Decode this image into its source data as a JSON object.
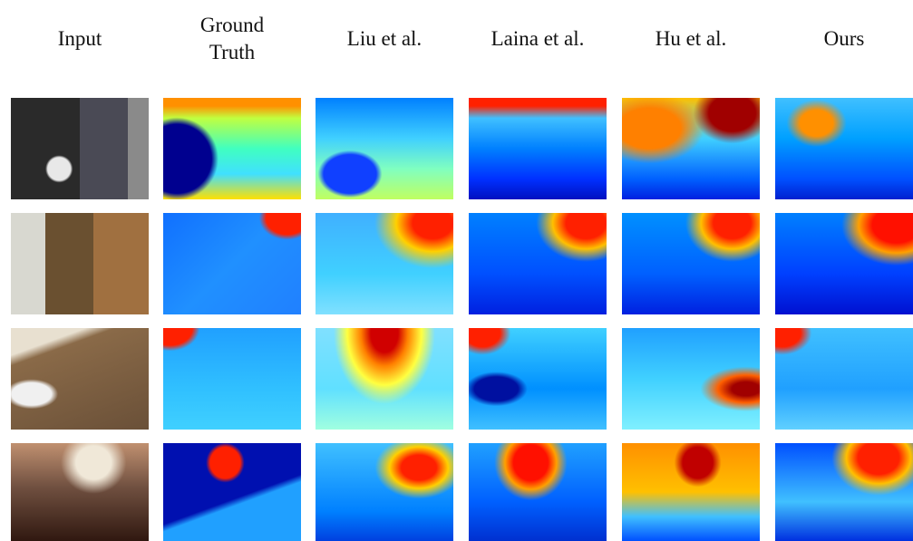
{
  "columns": [
    "Input",
    "Ground Truth",
    "Liu et al.",
    "Laina et al.",
    "Hu et al.",
    "Ours"
  ]
}
